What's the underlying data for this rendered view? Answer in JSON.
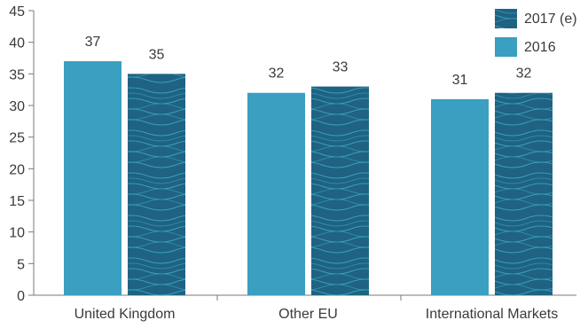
{
  "chart_data": {
    "type": "bar",
    "categories": [
      "United Kingdom",
      "Other EU",
      "International Markets"
    ],
    "series": [
      {
        "name": "2016",
        "values": [
          37,
          32,
          31
        ],
        "color": "#3a9fc0",
        "pattern": "solid"
      },
      {
        "name": "2017 (e)",
        "values": [
          35,
          33,
          32
        ],
        "color": "#1e5f80",
        "pattern": "waves"
      }
    ],
    "ylim": [
      0,
      45
    ],
    "yticks": [
      0,
      5,
      10,
      15,
      20,
      25,
      30,
      35,
      40,
      45
    ],
    "legend_position": "top-right",
    "legend_order": [
      "2017 (e)",
      "2016"
    ],
    "grid": false,
    "data_labels": true,
    "axis_color": "#7a7a7a"
  }
}
